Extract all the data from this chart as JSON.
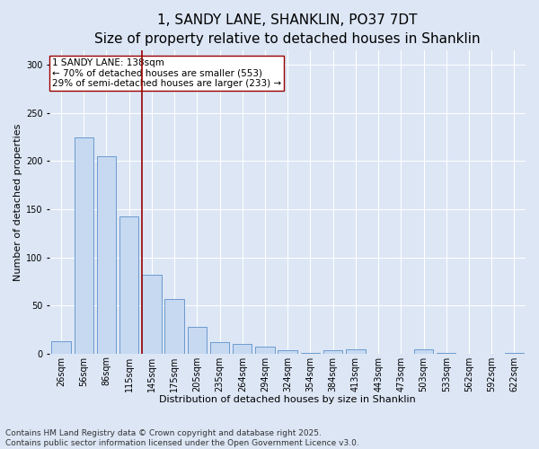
{
  "title1": "1, SANDY LANE, SHANKLIN, PO37 7DT",
  "title2": "Size of property relative to detached houses in Shanklin",
  "xlabel": "Distribution of detached houses by size in Shanklin",
  "ylabel": "Number of detached properties",
  "categories": [
    "26sqm",
    "56sqm",
    "86sqm",
    "115sqm",
    "145sqm",
    "175sqm",
    "205sqm",
    "235sqm",
    "264sqm",
    "294sqm",
    "324sqm",
    "354sqm",
    "384sqm",
    "413sqm",
    "443sqm",
    "473sqm",
    "503sqm",
    "533sqm",
    "562sqm",
    "592sqm",
    "622sqm"
  ],
  "values": [
    13,
    225,
    205,
    143,
    82,
    57,
    28,
    12,
    10,
    7,
    3,
    1,
    3,
    4,
    0,
    0,
    4,
    1,
    0,
    0,
    1
  ],
  "bar_color": "#c6d9f1",
  "bar_edge_color": "#5b8fc9",
  "vline_color": "#990000",
  "vline_index": 4,
  "annotation_text": "1 SANDY LANE: 138sqm\n← 70% of detached houses are smaller (553)\n29% of semi-detached houses are larger (233) →",
  "annotation_box_facecolor": "#ffffff",
  "annotation_box_edgecolor": "#990000",
  "background_color": "#dce6f5",
  "plot_bg_color": "#dce6f5",
  "grid_color": "#ffffff",
  "footer_line1": "Contains HM Land Registry data © Crown copyright and database right 2025.",
  "footer_line2": "Contains public sector information licensed under the Open Government Licence v3.0.",
  "ylim": [
    0,
    315
  ],
  "yticks": [
    0,
    50,
    100,
    150,
    200,
    250,
    300
  ],
  "title1_fontsize": 11,
  "title2_fontsize": 9.5,
  "xlabel_fontsize": 8,
  "ylabel_fontsize": 8,
  "tick_fontsize": 7,
  "annotation_fontsize": 7.5,
  "footer_fontsize": 6.5
}
